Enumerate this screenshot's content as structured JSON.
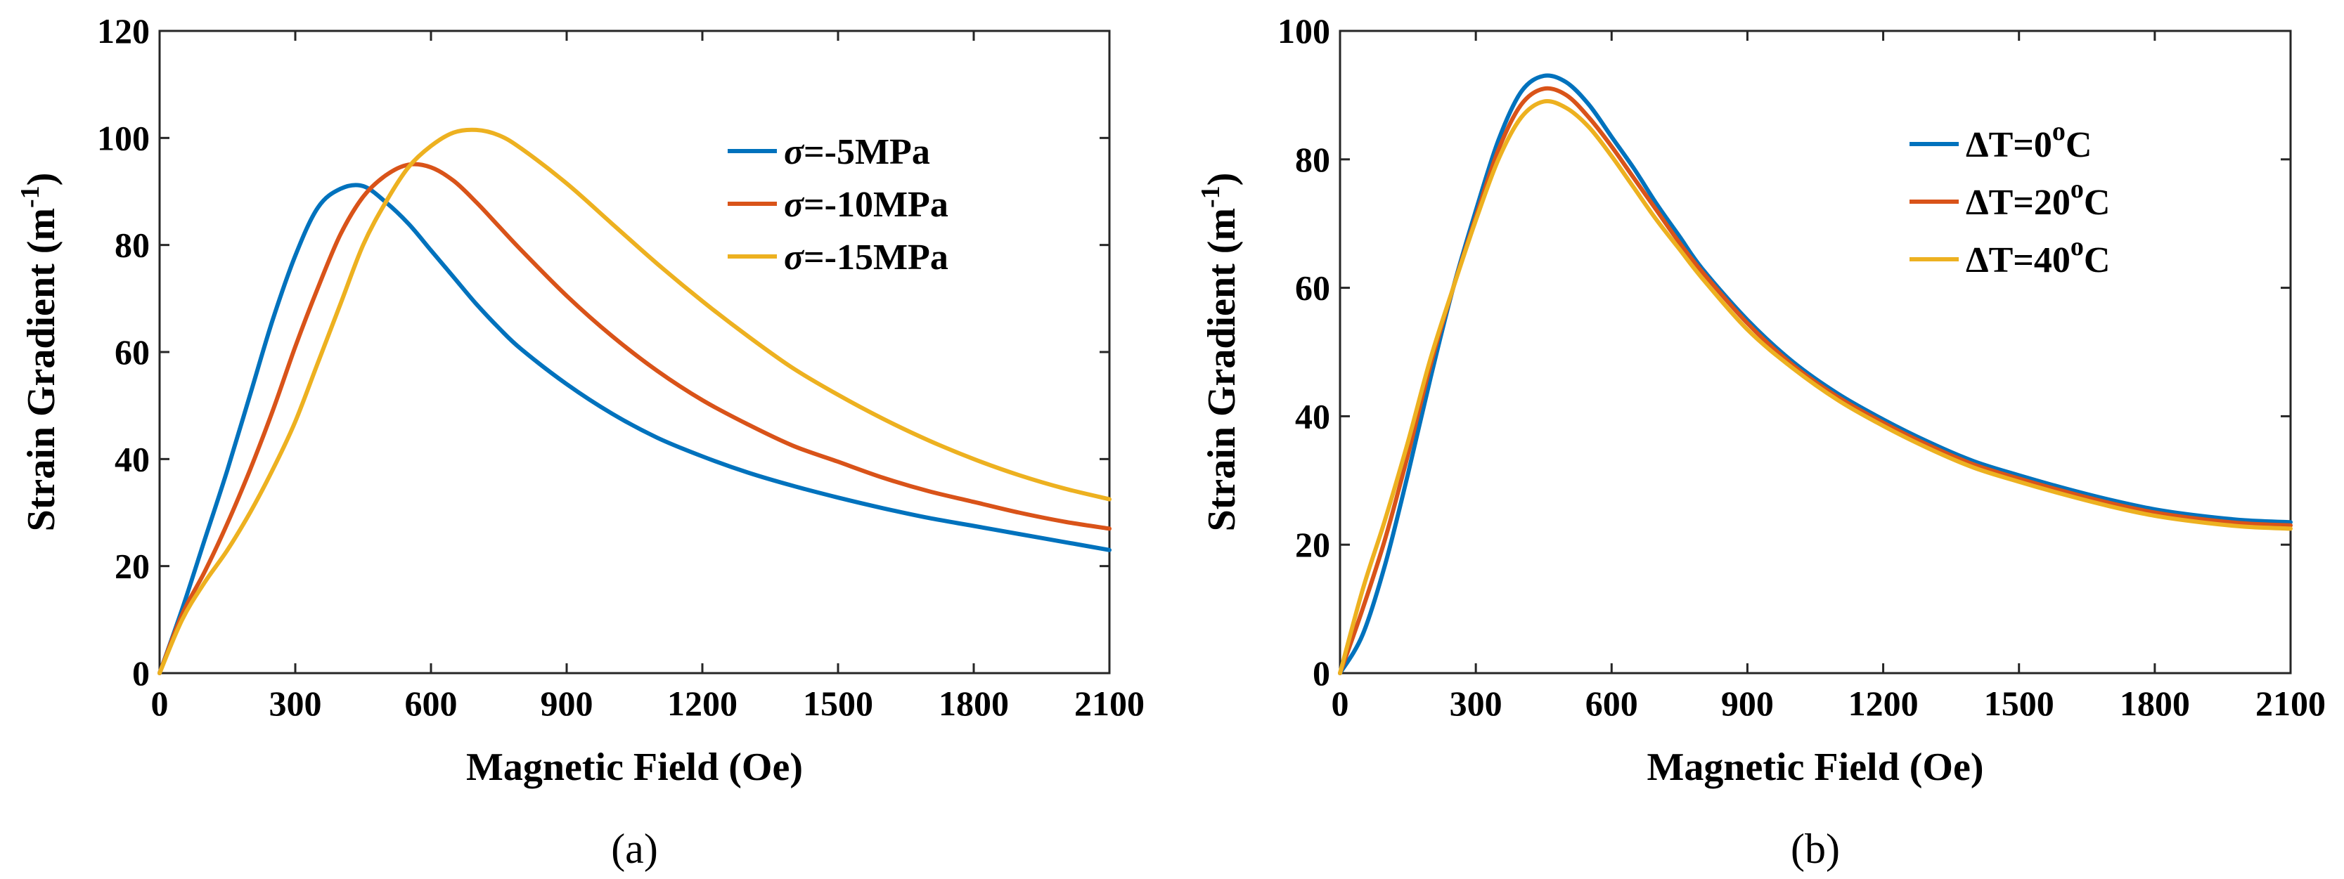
{
  "chart_data": [
    {
      "type": "line",
      "panel_label": "(a)",
      "xlabel": "Magnetic Field (Oe)",
      "ylabel": "Strain Gradient (m",
      "ylabel_sup": "-1",
      "ylabel_close": ")",
      "xlim": [
        0,
        2100
      ],
      "ylim": [
        0,
        120
      ],
      "xticks": [
        "0",
        "300",
        "600",
        "900",
        "1200",
        "1500",
        "1800",
        "2100"
      ],
      "yticks": [
        "0",
        "20",
        "40",
        "60",
        "80",
        "100",
        "120"
      ],
      "legend_position": "top-right",
      "x": [
        0,
        50,
        100,
        150,
        200,
        250,
        300,
        350,
        400,
        450,
        500,
        550,
        600,
        650,
        700,
        750,
        800,
        900,
        1000,
        1100,
        1200,
        1300,
        1400,
        1500,
        1600,
        1700,
        1800,
        1900,
        2000,
        2100
      ],
      "series": [
        {
          "name_sym": "σ",
          "name_rest": "=-5MPa",
          "color": "#0072BD",
          "values": [
            0,
            12,
            25,
            38,
            52,
            66,
            78,
            87,
            90.5,
            91,
            88,
            84,
            79,
            74,
            69,
            64.5,
            60.5,
            54,
            48.5,
            44,
            40.5,
            37.5,
            35,
            32.8,
            30.8,
            29,
            27.5,
            26,
            24.5,
            23
          ]
        },
        {
          "name_sym": "σ",
          "name_rest": "=-10MPa",
          "color": "#D95319",
          "values": [
            0,
            11,
            19,
            28,
            38,
            49,
            61,
            72,
            82,
            89,
            93,
            95,
            94.5,
            92,
            88,
            83.5,
            79,
            70.5,
            63,
            56.5,
            51,
            46.5,
            42.5,
            39.5,
            36.5,
            34,
            32,
            30,
            28.3,
            27
          ]
        },
        {
          "name_sym": "σ",
          "name_rest": "=-15MPa",
          "color": "#EDB120",
          "values": [
            0,
            10,
            17,
            23,
            30,
            38,
            47,
            58,
            69,
            80,
            88,
            94.5,
            98.5,
            101,
            101.5,
            100.5,
            98,
            91.5,
            84,
            76.5,
            69.5,
            63,
            57,
            52,
            47.5,
            43.5,
            40,
            37,
            34.5,
            32.5
          ]
        }
      ]
    },
    {
      "type": "line",
      "panel_label": "(b)",
      "xlabel": "Magnetic Field (Oe)",
      "ylabel": "Strain Gradient (m",
      "ylabel_sup": "-1",
      "ylabel_close": ")",
      "xlim": [
        0,
        2100
      ],
      "ylim": [
        0,
        100
      ],
      "xticks": [
        "0",
        "300",
        "600",
        "900",
        "1200",
        "1500",
        "1800",
        "2100"
      ],
      "yticks": [
        "0",
        "20",
        "40",
        "60",
        "80",
        "100"
      ],
      "legend_position": "top-right",
      "x": [
        0,
        50,
        100,
        150,
        200,
        250,
        300,
        350,
        400,
        450,
        500,
        550,
        600,
        650,
        700,
        750,
        800,
        900,
        1000,
        1100,
        1200,
        1300,
        1400,
        1500,
        1600,
        1700,
        1800,
        1900,
        2000,
        2100
      ],
      "series": [
        {
          "name_sym": "ΔT=0",
          "name_sup": "o",
          "name_rest": "C",
          "color": "#0072BD",
          "values": [
            0,
            6,
            17,
            31,
            46,
            60,
            72,
            83,
            90.5,
            93,
            92,
            88.5,
            83.5,
            78.5,
            73,
            68,
            63,
            55,
            48.5,
            43.5,
            39.5,
            36,
            33,
            30.8,
            28.8,
            27,
            25.5,
            24.5,
            23.8,
            23.5
          ]
        },
        {
          "name_sym": "ΔT=20",
          "name_sup": "o",
          "name_rest": "C",
          "color": "#D95319",
          "values": [
            0,
            10,
            21,
            34,
            48,
            60,
            71,
            81.5,
            88.5,
            91,
            90,
            86.5,
            82,
            77,
            72,
            67,
            62.5,
            54.5,
            48,
            43,
            39,
            35.5,
            32.5,
            30.3,
            28.3,
            26.5,
            25,
            24,
            23.3,
            23
          ]
        },
        {
          "name_sym": "ΔT=40",
          "name_sup": "o",
          "name_rest": "C",
          "color": "#EDB120",
          "values": [
            0,
            13,
            24,
            36,
            49,
            60,
            70.5,
            80,
            86.5,
            89,
            88,
            85,
            80.5,
            75.5,
            70.5,
            66,
            61.5,
            53.5,
            47.5,
            42.5,
            38.5,
            35,
            32,
            29.8,
            27.8,
            26,
            24.5,
            23.5,
            22.8,
            22.5
          ]
        }
      ]
    }
  ]
}
